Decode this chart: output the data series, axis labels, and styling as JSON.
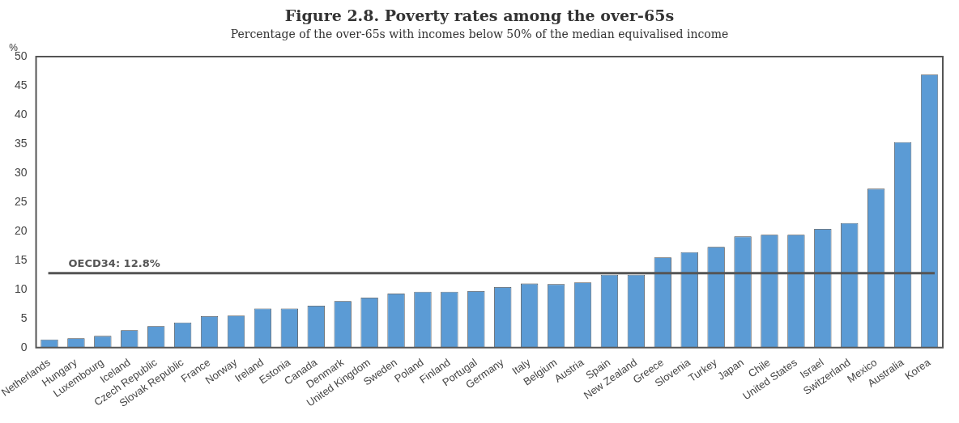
{
  "chart_data": {
    "type": "bar",
    "title": "Figure 2.8. Poverty rates among the over-65s",
    "subtitle": "Percentage of the over-65s with incomes below 50% of the median equivalised income",
    "ylabel": "%",
    "categories": [
      "Netherlands",
      "Hungary",
      "Luxembourg",
      "Iceland",
      "Czech Republic",
      "Slovak Republic",
      "France",
      "Norway",
      "Ireland",
      "Estonia",
      "Canada",
      "Denmark",
      "United Kingdom",
      "Sweden",
      "Poland",
      "Finland",
      "Portugal",
      "Germany",
      "Italy",
      "Belgium",
      "Austria",
      "Spain",
      "New Zealand",
      "Greece",
      "Slovenia",
      "Turkey",
      "Japan",
      "Chile",
      "United States",
      "Israel",
      "Switzerland",
      "Mexico",
      "Australia",
      "Korea"
    ],
    "values": [
      1.4,
      1.6,
      2.0,
      3.0,
      3.7,
      4.3,
      5.4,
      5.5,
      6.7,
      6.7,
      7.2,
      8.0,
      8.6,
      9.3,
      9.6,
      9.6,
      9.7,
      10.4,
      11.0,
      10.9,
      11.2,
      12.5,
      12.5,
      15.5,
      16.4,
      17.3,
      19.1,
      19.4,
      19.4,
      20.4,
      21.4,
      27.3,
      35.3,
      46.9
    ],
    "color": "#5b9bd5",
    "ylim": [
      0,
      50
    ],
    "yticks": [
      0,
      5,
      10,
      15,
      20,
      25,
      30,
      35,
      40,
      45,
      50
    ],
    "grid": false,
    "legend": false,
    "ref_lines": [
      {
        "axis": "y",
        "value": 12.8,
        "label": "OECD34: 12.8%",
        "color": "#555555"
      }
    ]
  }
}
